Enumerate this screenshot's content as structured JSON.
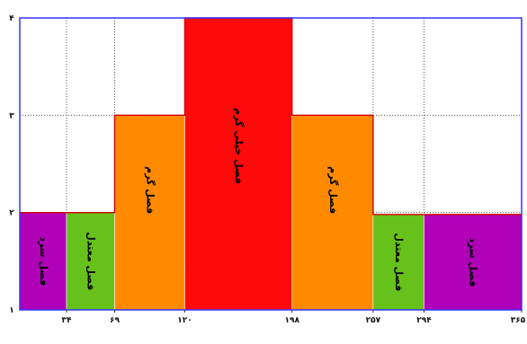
{
  "chart_data": {
    "type": "step-area",
    "title": "",
    "xlabel": "",
    "ylabel": "",
    "xlim": [
      0,
      365
    ],
    "ylim": [
      1,
      4
    ],
    "x_ticks": [
      34,
      69,
      120,
      198,
      257,
      294,
      365
    ],
    "x_tick_labels": [
      "۳۴",
      "۶۹",
      "۱۲۰",
      "۱۹۸",
      "۲۵۷",
      "۲۹۴",
      "۳۶۵"
    ],
    "y_ticks": [
      1,
      2,
      3,
      4
    ],
    "y_tick_labels": [
      "۱",
      "۲",
      "۳",
      "۴"
    ],
    "grid": true,
    "segments": [
      {
        "x0": 0,
        "x1": 34,
        "value": 2,
        "label": "فصل سرد",
        "color": "#b000b8"
      },
      {
        "x0": 34,
        "x1": 69,
        "value": 2,
        "label": "فصل معتدل",
        "color": "#66c21a"
      },
      {
        "x0": 69,
        "x1": 120,
        "value": 3,
        "label": "فصل گرم",
        "color": "#ff8a00"
      },
      {
        "x0": 120,
        "x1": 198,
        "value": 4,
        "label": "فصل خیلی گرم",
        "color": "#ff0a0a"
      },
      {
        "x0": 198,
        "x1": 257,
        "value": 3,
        "label": "فصل گرم",
        "color": "#ff8a00"
      },
      {
        "x0": 257,
        "x1": 294,
        "value": 1.98,
        "label": "فصل معتدل",
        "color": "#66c21a"
      },
      {
        "x0": 294,
        "x1": 365,
        "value": 1.98,
        "label": "فصل سرد",
        "color": "#b000b8"
      }
    ],
    "outline_color": "#d40000",
    "frame_color": "#3333ff"
  }
}
